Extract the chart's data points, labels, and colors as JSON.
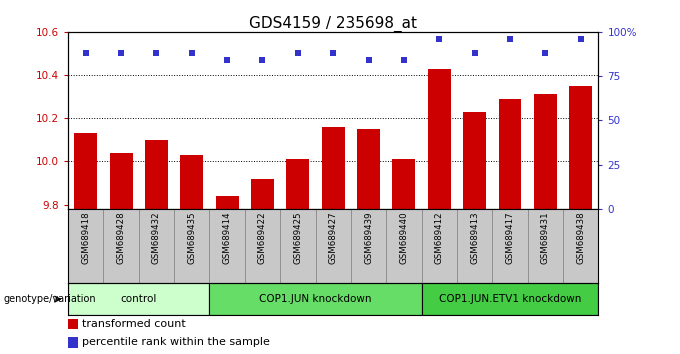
{
  "title": "GDS4159 / 235698_at",
  "samples": [
    "GSM689418",
    "GSM689428",
    "GSM689432",
    "GSM689435",
    "GSM689414",
    "GSM689422",
    "GSM689425",
    "GSM689427",
    "GSM689439",
    "GSM689440",
    "GSM689412",
    "GSM689413",
    "GSM689417",
    "GSM689431",
    "GSM689438"
  ],
  "bar_values": [
    10.13,
    10.04,
    10.1,
    10.03,
    9.84,
    9.92,
    10.01,
    10.16,
    10.15,
    10.01,
    10.43,
    10.23,
    10.29,
    10.31,
    10.35
  ],
  "dot_values": [
    88,
    88,
    88,
    88,
    84,
    84,
    88,
    88,
    84,
    84,
    96,
    88,
    96,
    88,
    96
  ],
  "bar_color": "#cc0000",
  "dot_color": "#3333cc",
  "ylim_left": [
    9.78,
    10.6
  ],
  "ylim_right": [
    0,
    100
  ],
  "yticks_left": [
    9.8,
    10.0,
    10.2,
    10.4,
    10.6
  ],
  "yticks_right": [
    0,
    25,
    50,
    75,
    100
  ],
  "groups": [
    {
      "label": "control",
      "start": 0,
      "end": 4,
      "color": "#ccffcc"
    },
    {
      "label": "COP1.JUN knockdown",
      "start": 4,
      "end": 10,
      "color": "#66dd66"
    },
    {
      "label": "COP1.JUN.ETV1 knockdown",
      "start": 10,
      "end": 15,
      "color": "#44cc44"
    }
  ],
  "legend_bar_label": "transformed count",
  "legend_dot_label": "percentile rank within the sample",
  "genotype_label": "genotype/variation",
  "bg_color": "#ffffff",
  "tick_label_color_left": "#cc0000",
  "tick_label_color_right": "#3333cc",
  "grid_color": "#000000",
  "title_fontsize": 11,
  "axis_fontsize": 7.5,
  "label_fontsize": 8,
  "xtick_area_color": "#c8c8c8"
}
